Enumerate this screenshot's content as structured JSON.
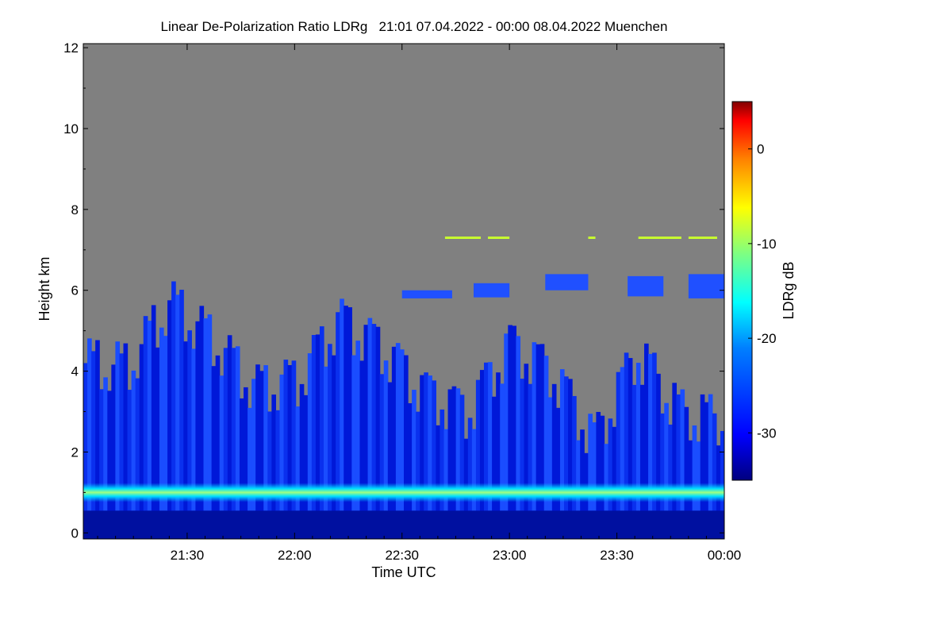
{
  "chart_data": {
    "type": "heatmap",
    "title": "Linear De-Polarization Ratio LDRg   21:01 07.04.2022 - 00:00 08.04.2022 Muenchen",
    "xlabel": "Time UTC",
    "ylabel": "Height km",
    "x_range_minutes": [
      -29,
      150
    ],
    "x_tick_labels": [
      "21:30",
      "22:00",
      "22:30",
      "23:00",
      "23:30",
      "00:00"
    ],
    "x_tick_minutes": [
      0,
      30,
      60,
      90,
      120,
      150
    ],
    "ylim": [
      -0.15,
      12.1
    ],
    "y_tick_labels": [
      "0",
      "2",
      "4",
      "6",
      "8",
      "10",
      "12"
    ],
    "y_tick_values": [
      0,
      2,
      4,
      6,
      8,
      10,
      12
    ],
    "colorbar": {
      "label": "LDRg dB",
      "range": [
        -35,
        5
      ],
      "tick_labels": [
        "0",
        "-10",
        "-20",
        "-30"
      ],
      "tick_values": [
        0,
        -10,
        -20,
        -30
      ]
    },
    "no_signal_color": "#808080",
    "features": {
      "boundary_layer_band_height_km": 1.0,
      "boundary_layer_ldr_db": -20,
      "cloud_top_height_km_approx": [
        4.2,
        4.1,
        5.7,
        4.8,
        3.6,
        3.8,
        5.3,
        4.6,
        3.5,
        3.0,
        4.7,
        4.0,
        2.3,
        4.5,
        3.0,
        2.8
      ],
      "background_ldr_db": -31,
      "thin_layer_height_km": 7.3
    }
  }
}
